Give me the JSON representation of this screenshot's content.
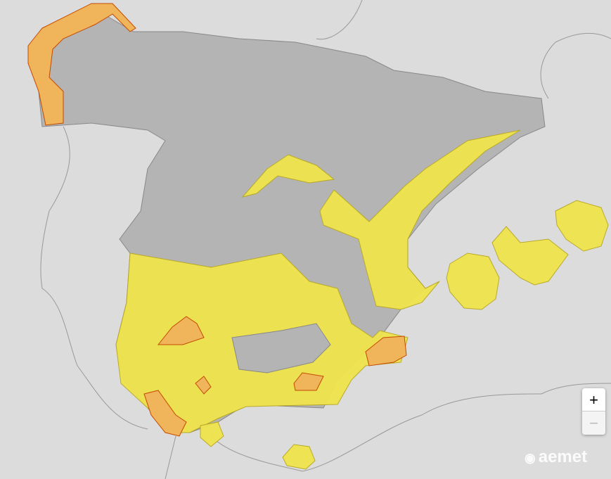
{
  "map": {
    "land_color": "#b4b4b4",
    "neighbor_color": "#dcdcdc",
    "warning_colors": {
      "yellow": "#f0e44c",
      "orange": "#f0b45a"
    }
  },
  "controls": {
    "zoom_in_label": "+",
    "zoom_out_label": "−"
  },
  "logo": {
    "text": "aemet"
  }
}
